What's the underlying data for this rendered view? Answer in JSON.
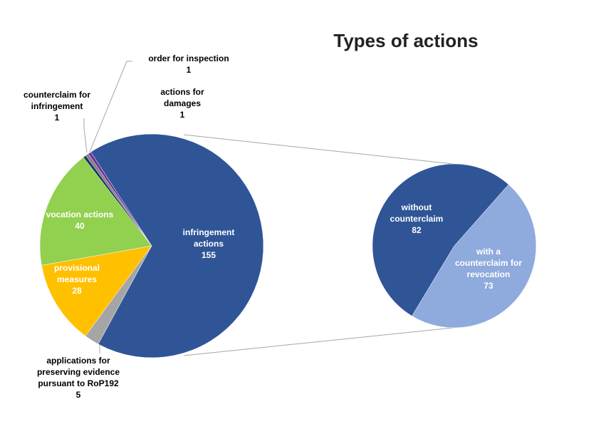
{
  "chart_data": [
    {
      "type": "pie",
      "title": "Types of actions",
      "categories": [
        "infringement actions",
        "applications for preserving evidence pursuant to RoP192",
        "provisional measures",
        "vocation actions",
        "counterclaim for infringement",
        "order for inspection",
        "actions for damages"
      ],
      "values": [
        155,
        5,
        28,
        40,
        1,
        1,
        1
      ],
      "colors": [
        "#2f5597",
        "#a5a5a5",
        "#ffc000",
        "#92d050",
        "#1f3864",
        "#7f7f7f",
        "#7030a0"
      ]
    },
    {
      "type": "pie",
      "categories": [
        "without counterclaim",
        "with a counterclaim for revocation"
      ],
      "values": [
        82,
        73
      ],
      "colors": [
        "#2f5597",
        "#8faadc"
      ]
    }
  ]
}
